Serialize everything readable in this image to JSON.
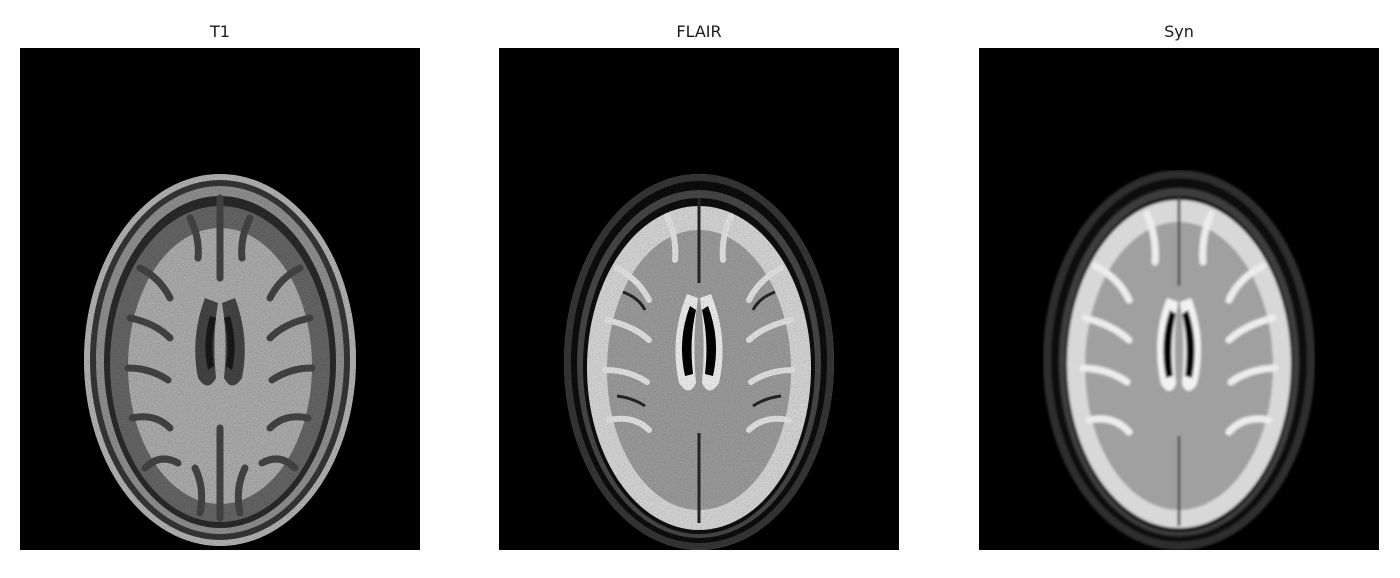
{
  "panels": [
    {
      "title": "T1"
    },
    {
      "title": "FLAIR"
    },
    {
      "title": "Syn"
    }
  ],
  "colors": {
    "background": "#ffffff",
    "image_background": "#000000",
    "title_text": "#1a1a1a"
  }
}
